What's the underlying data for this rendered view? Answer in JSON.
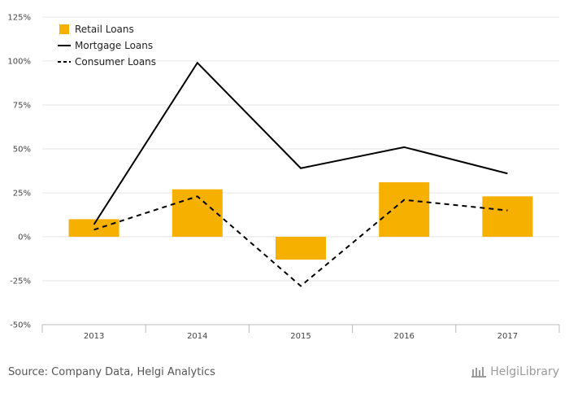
{
  "chart_data": {
    "type": "bar",
    "categories": [
      "2013",
      "2014",
      "2015",
      "2016",
      "2017"
    ],
    "series": [
      {
        "name": "Retail Loans",
        "kind": "bar",
        "color": "#f5b000",
        "values": [
          10,
          27,
          -13,
          31,
          23
        ]
      },
      {
        "name": "Mortgage Loans",
        "kind": "line",
        "style": "solid",
        "color": "#000000",
        "values": [
          7,
          99,
          39,
          51,
          36
        ]
      },
      {
        "name": "Consumer Loans",
        "kind": "line",
        "style": "dashed",
        "color": "#000000",
        "values": [
          4,
          23,
          -28,
          21,
          15
        ]
      }
    ],
    "y_ticks": [
      "125%",
      "100%",
      "75%",
      "50%",
      "25%",
      "0%",
      "-25%",
      "-50%"
    ],
    "ylim": [
      -50,
      125
    ],
    "y_unit": "%",
    "grid": true,
    "legend_position": "top-left"
  },
  "footer": {
    "source": "Source: Company Data, Helgi Analytics",
    "brand": "HelgiLibrary"
  }
}
